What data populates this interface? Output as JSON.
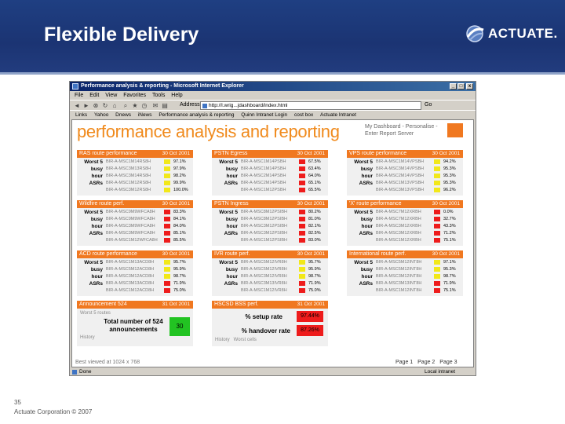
{
  "slide": {
    "title": "Flexible Delivery",
    "logo_text": "ACTUATE.",
    "slide_number": "35",
    "footer": "Actuate Corporation © 2007"
  },
  "browser": {
    "window_title": "Performance analysis & reporting - Microsoft Internet Explorer",
    "menu": [
      "File",
      "Edit",
      "View",
      "Favorites",
      "Tools",
      "Help"
    ],
    "address_label": "Address",
    "address_value": "http://l.wrig...jdashboard/index.html",
    "go_label": "Go",
    "links": [
      "Links",
      "Yahoo",
      "Dnews",
      "iNews",
      "Performance analysis & reporting",
      "Quinn Intranet Login",
      "cost box",
      "Actuate Intranet"
    ],
    "status_left": "Done",
    "status_right": "Local intranet"
  },
  "page": {
    "title": "performance analysis and reporting",
    "links": "My Dashboard - Personalise - Enter Report Server",
    "footer_note": "Best viewed at 1024 x 768",
    "pager": [
      "Page 1",
      "Page 2",
      "Page 3"
    ]
  },
  "colors": {
    "green": "#22c322",
    "yellow": "#f2e81a",
    "red": "#ee1c1c",
    "header": "#f07820"
  },
  "panels": [
    {
      "title": "RAS route performance",
      "date": "30 Oct 2001",
      "rows": [
        [
          "BIR-A-MSC1M14RS8H",
          "97.1%",
          "yellow"
        ],
        [
          "BIR-A-MSC3M13RS8H",
          "97.9%",
          "yellow"
        ],
        [
          "BIR-A-MSC3M14RS8H",
          "98.2%",
          "yellow"
        ],
        [
          "BIR-A-MSC1M12RS8H",
          "99.9%",
          "yellow"
        ],
        [
          "BIR-A-MSC3M12RS8H",
          "100.0%",
          "yellow"
        ]
      ]
    },
    {
      "title": "PSTN Egress",
      "date": "30 Oct 2001",
      "rows": [
        [
          "BIR-A-MSC1M14PSBH",
          "67.5%",
          "red"
        ],
        [
          "BIR-A-MSC1M14PSBH",
          "63.4%",
          "red"
        ],
        [
          "BIR-A-MSC2M14PSBH",
          "64.0%",
          "red"
        ],
        [
          "BIR-A-MSC2M14PSBH",
          "65.1%",
          "red"
        ],
        [
          "BIR-A-MSC1M12PSBH",
          "65.5%",
          "red"
        ]
      ]
    },
    {
      "title": "VPS route performance",
      "date": "30 Oct 2001",
      "rows": [
        [
          "BIR-A-MSC1M14VPSBH",
          "94.2%",
          "yellow"
        ],
        [
          "BIR-A-MSC3M14VPSBH",
          "95.3%",
          "yellow"
        ],
        [
          "BIR-A-MSC2M14VPSBH",
          "95.3%",
          "yellow"
        ],
        [
          "BIR-A-MSC1M13VPSBH",
          "95.3%",
          "yellow"
        ],
        [
          "BIR-A-MSC3M13VPSBH",
          "96.2%",
          "yellow"
        ]
      ]
    },
    {
      "title": "Wildfire route perf.",
      "date": "30 Oct 2001",
      "rows": [
        [
          "BIR-A-MSC9M9WFCA8H",
          "83.3%",
          "red"
        ],
        [
          "BIR-A-MSC9M9WFCA8H",
          "84.1%",
          "red"
        ],
        [
          "BIR-A-MSC3M9WFCA8H",
          "84.0%",
          "red"
        ],
        [
          "BIR-A-MSC3M9WFCA8H",
          "85.1%",
          "red"
        ],
        [
          "BIR-A-MSC1M12WFCA8H",
          "85.5%",
          "red"
        ]
      ]
    },
    {
      "title": "PSTN Ingress",
      "date": "30 Oct 2001",
      "rows": [
        [
          "BIR-A-MSC8M12PSIBH",
          "80.2%",
          "red"
        ],
        [
          "BIR-A-MSC8M12PSIBH",
          "81.0%",
          "red"
        ],
        [
          "BIR-A-MSC3M12PSIBH",
          "82.1%",
          "red"
        ],
        [
          "BIR-A-MSC3M12PSIBH",
          "82.5%",
          "red"
        ],
        [
          "BIR-A-MSC1M12PSIBH",
          "83.0%",
          "red"
        ]
      ]
    },
    {
      "title": "'X' route performance",
      "date": "30 Oct 2001",
      "rows": [
        [
          "BIR-A-MSC7M12XRBH",
          "0.0%",
          "red"
        ],
        [
          "BIR-A-MSC7M12XRBH",
          "32.7%",
          "red"
        ],
        [
          "BIR-A-MSC3M12XRBH",
          "43.3%",
          "red"
        ],
        [
          "BIR-A-MSC3M12XRBH",
          "71.2%",
          "red"
        ],
        [
          "BIR-A-MSC1M12XRBH",
          "75.1%",
          "red"
        ]
      ]
    },
    {
      "title": "ACD route performance",
      "date": "30 Oct 2001",
      "rows": [
        [
          "BIR-A-MSC1M13ACD8H",
          "95.7%",
          "yellow"
        ],
        [
          "BIR-A-MSC5M12ACD8H",
          "95.9%",
          "yellow"
        ],
        [
          "BIR-A-MSC3M12ACD8H",
          "98.7%",
          "yellow"
        ],
        [
          "BIR-A-MSC3M13ACD8H",
          "71.9%",
          "red"
        ],
        [
          "BIR-A-MSC1M12ACD8H",
          "75.0%",
          "red"
        ]
      ]
    },
    {
      "title": "IVR route perf.",
      "date": "30 Oct 2001",
      "rows": [
        [
          "BIR-A-MSC5M12IVR8H",
          "95.7%",
          "yellow"
        ],
        [
          "BIR-A-MSC5M12IVR8H",
          "95.9%",
          "yellow"
        ],
        [
          "BIR-A-MSC3M12IVR8H",
          "98.7%",
          "yellow"
        ],
        [
          "BIR-A-MSC3M13IVR8H",
          "71.9%",
          "red"
        ],
        [
          "BIR-A-MSC1M12IVR8H",
          "75.0%",
          "red"
        ]
      ]
    },
    {
      "title": "International route perf.",
      "date": "30 Oct 2001",
      "rows": [
        [
          "BIR-A-MSC5M12INT8H",
          "97.1%",
          "yellow"
        ],
        [
          "BIR-A-MSC5M12INT8H",
          "95.3%",
          "yellow"
        ],
        [
          "BIR-A-MSC3M12INT8H",
          "98.7%",
          "yellow"
        ],
        [
          "BIR-A-MSC3M13INT8H",
          "71.9%",
          "red"
        ],
        [
          "BIR-A-MSC1M12INT8H",
          "75.1%",
          "red"
        ]
      ]
    }
  ],
  "worst_labels": [
    "Worst 5",
    "busy",
    "hour",
    "ASRs"
  ],
  "announcement": {
    "title": "Announcement 524",
    "date": "31 Oct 2001",
    "worst_label": "Worst 5 routes",
    "total_label": "Total number of 524 announcements",
    "value": "30",
    "history": "History"
  },
  "hscsd": {
    "title": "HSCSD BSS perf.",
    "date": "31 Oct 2001",
    "setup_label": "% setup rate",
    "setup_value": "97.44%",
    "handover_label": "% handover rate",
    "handover_value": "87.26%",
    "links": "History   Worst cells"
  }
}
